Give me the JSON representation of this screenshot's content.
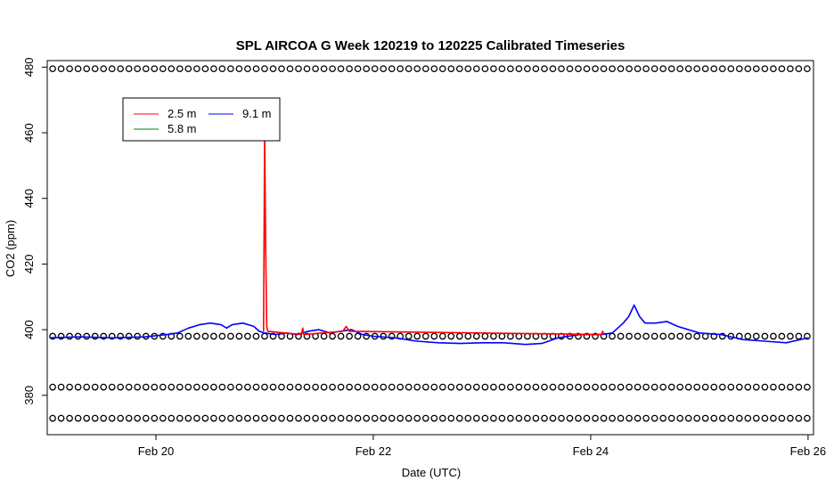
{
  "chart_data": {
    "type": "line",
    "title": "SPL AIRCOA G  Week 120219 to 120225  Calibrated Timeseries",
    "xlabel": "Date (UTC)",
    "ylabel": "CO2 (ppm)",
    "x_unit": "days",
    "xlim": [
      19.0,
      26.05
    ],
    "ylim": [
      368,
      482
    ],
    "x_ticks": [
      {
        "value": 20,
        "label": "Feb 20"
      },
      {
        "value": 22,
        "label": "Feb 22"
      },
      {
        "value": 24,
        "label": "Feb 24"
      },
      {
        "value": 26,
        "label": "Feb 26"
      }
    ],
    "y_ticks": [
      380,
      400,
      420,
      440,
      460,
      480
    ],
    "grid": false,
    "legend": {
      "placement": "top-left",
      "entries": [
        {
          "label": "2.5 m",
          "color": "#ff0000"
        },
        {
          "label": "5.8 m",
          "color": "#008000"
        },
        {
          "label": "9.1 m",
          "color": "#0000ff"
        }
      ]
    },
    "series": [
      {
        "name": "9.1 m",
        "color": "#0000ff",
        "x": [
          19.02,
          19.3,
          19.6,
          19.9,
          20.1,
          20.2,
          20.3,
          20.4,
          20.5,
          20.6,
          20.65,
          20.7,
          20.8,
          20.9,
          20.95,
          21.0,
          21.1,
          21.2,
          21.3,
          21.4,
          21.5,
          21.6,
          21.7,
          21.8,
          21.9,
          22.0,
          22.2,
          22.4,
          22.6,
          22.8,
          23.0,
          23.2,
          23.4,
          23.55,
          23.7,
          23.9,
          24.1,
          24.2,
          24.3,
          24.35,
          24.4,
          24.45,
          24.5,
          24.6,
          24.7,
          24.8,
          24.9,
          25.0,
          25.2,
          25.4,
          25.6,
          25.8,
          26.0
        ],
        "values": [
          397.5,
          397.8,
          397.5,
          397.8,
          398.5,
          399,
          400.5,
          401.5,
          402,
          401.5,
          400.5,
          401.5,
          402,
          401,
          399.5,
          399,
          398.5,
          399,
          398.5,
          399.5,
          400,
          399,
          399.5,
          400,
          398.5,
          398,
          397.5,
          396.5,
          396,
          395.8,
          396,
          396,
          395.5,
          395.8,
          397.5,
          398.5,
          398.5,
          399,
          402,
          404,
          407.5,
          404,
          402,
          402,
          402.5,
          401,
          400,
          399,
          398.5,
          397,
          396.5,
          396,
          397.5
        ]
      },
      {
        "name": "2.5 m",
        "color": "#ff0000",
        "x": [
          20.99,
          21.0,
          21.01,
          21.02,
          21.03,
          21.34,
          21.35,
          21.36,
          21.72,
          21.75,
          21.78,
          24.1,
          24.11,
          24.12
        ],
        "values": [
          399.5,
          460,
          424,
          401,
          399.5,
          398.5,
          400.5,
          398.5,
          399.5,
          401,
          399.5,
          398.5,
          399.5,
          398.5
        ]
      },
      {
        "name": "5.8 m",
        "color": "#008000",
        "x": [],
        "values": []
      }
    ],
    "marker_rows": [
      {
        "y": 479.5,
        "x_start": 19.05,
        "x_end": 26.0,
        "step": 0.078
      },
      {
        "y": 398,
        "x_start": 19.05,
        "x_end": 26.0,
        "step": 0.078
      },
      {
        "y": 382.5,
        "x_start": 19.05,
        "x_end": 26.0,
        "step": 0.078
      },
      {
        "y": 373,
        "x_start": 19.05,
        "x_end": 26.0,
        "step": 0.078
      }
    ]
  }
}
